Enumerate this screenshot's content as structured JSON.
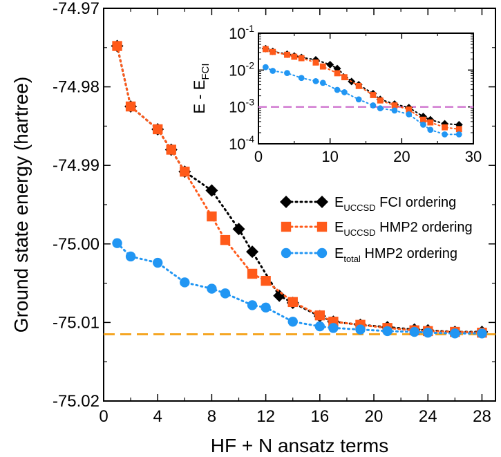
{
  "chart_data": [
    {
      "type": "scatter",
      "panel": "main",
      "xlabel": "HF + N ansatz terms",
      "ylabel": "Ground state energy (hartree)",
      "xlim": [
        0,
        29
      ],
      "ylim": [
        -75.02,
        -74.97
      ],
      "xticks": [
        0,
        4,
        8,
        12,
        16,
        20,
        24,
        28
      ],
      "xtick_labels": [
        "0",
        "4",
        "8",
        "12",
        "16",
        "20",
        "24",
        "28"
      ],
      "yticks": [
        -74.97,
        -74.98,
        -74.99,
        -75.0,
        -75.01,
        -75.02
      ],
      "ytick_labels": [
        "-74.97",
        "-74.98",
        "-74.99",
        "-75.00",
        "-75.01",
        "-75.02"
      ],
      "legend": {
        "position": "center-right",
        "entries": [
          {
            "label_main": "E",
            "label_sub": "UCCSD",
            "label_rest": " FCI ordering",
            "color": "#000000",
            "marker": "diamond"
          },
          {
            "label_main": "E",
            "label_sub": "UCCSD",
            "label_rest": " HMP2 ordering",
            "color": "#ff5a1a",
            "marker": "square"
          },
          {
            "label_main": "E",
            "label_sub": "total",
            "label_rest": " HMP2 ordering",
            "color": "#2196f3",
            "marker": "circle"
          }
        ]
      },
      "reference_line": {
        "y": -75.0115,
        "color": "#f5a623",
        "style": "dashed"
      },
      "series": [
        {
          "marker": "diamond",
          "color": "#000000",
          "x": [
            1,
            2,
            4,
            5,
            6,
            8,
            10,
            11,
            13,
            14,
            16,
            17,
            19,
            21,
            23,
            24,
            26,
            28
          ],
          "y": [
            -74.9748,
            -74.9825,
            -74.9854,
            -74.988,
            -74.9908,
            -74.9932,
            -74.9981,
            -75.001,
            -75.0066,
            -75.0075,
            -75.0092,
            -75.0099,
            -75.0103,
            -75.0106,
            -75.0109,
            -75.011,
            -75.0112,
            -75.0112
          ]
        },
        {
          "marker": "square",
          "color": "#ff5a1a",
          "x": [
            1,
            2,
            4,
            5,
            6,
            8,
            9,
            11,
            12,
            14,
            16,
            17,
            19,
            21,
            23,
            24,
            26,
            28
          ],
          "y": [
            -74.9748,
            -74.9825,
            -74.9854,
            -74.988,
            -74.9908,
            -74.9965,
            -74.9995,
            -75.0038,
            -75.0047,
            -75.0074,
            -75.0091,
            -75.0099,
            -75.0103,
            -75.0107,
            -75.011,
            -75.0111,
            -75.0112,
            -75.0113
          ]
        },
        {
          "marker": "circle",
          "color": "#2196f3",
          "x": [
            1,
            2,
            4,
            6,
            8,
            9,
            11,
            12,
            14,
            16,
            17,
            19,
            21,
            23,
            24,
            26,
            28
          ],
          "y": [
            -74.9999,
            -75.0016,
            -75.0024,
            -75.0049,
            -75.0057,
            -75.0063,
            -75.0078,
            -75.0081,
            -75.0099,
            -75.0105,
            -75.0107,
            -75.0109,
            -75.0111,
            -75.0112,
            -75.0113,
            -75.0114,
            -75.0114
          ]
        }
      ]
    },
    {
      "type": "scatter",
      "panel": "inset",
      "ylabel_main": "E - E",
      "ylabel_sub": "FCI",
      "yscale": "log",
      "xlim": [
        0,
        30
      ],
      "ylim": [
        0.0001,
        0.1
      ],
      "xticks": [
        0,
        10,
        20,
        30
      ],
      "xtick_labels": [
        "0",
        "10",
        "20",
        "30"
      ],
      "yticks": [
        {
          "value": 0.1,
          "base": "10",
          "exp": "-1"
        },
        {
          "value": 0.01,
          "base": "10",
          "exp": "-2"
        },
        {
          "value": 0.001,
          "base": "10",
          "exp": "-3"
        },
        {
          "value": 0.0001,
          "base": "10",
          "exp": "-4"
        }
      ],
      "reference_line": {
        "y": 0.001,
        "color": "#d17ad1",
        "style": "dashed"
      },
      "series": [
        {
          "marker": "diamond",
          "color": "#000000",
          "x": [
            1,
            2,
            4,
            5,
            6,
            8,
            10,
            11,
            13,
            14,
            16,
            17,
            19,
            21,
            23,
            24,
            26,
            28
          ],
          "y": [
            0.038,
            0.032,
            0.027,
            0.024,
            0.022,
            0.019,
            0.014,
            0.011,
            0.0049,
            0.004,
            0.0023,
            0.0016,
            0.0012,
            0.00096,
            0.00055,
            0.00045,
            0.00035,
            0.00033
          ]
        },
        {
          "marker": "square",
          "color": "#ff5a1a",
          "x": [
            1,
            2,
            4,
            5,
            6,
            8,
            9,
            11,
            12,
            14,
            16,
            17,
            19,
            21,
            23,
            24,
            26,
            28
          ],
          "y": [
            0.037,
            0.031,
            0.026,
            0.023,
            0.021,
            0.016,
            0.0125,
            0.0082,
            0.0064,
            0.0037,
            0.0021,
            0.0015,
            0.0011,
            0.00085,
            0.00045,
            0.00038,
            0.00028,
            0.00025
          ]
        },
        {
          "marker": "circle",
          "color": "#2196f3",
          "x": [
            1,
            2,
            4,
            6,
            8,
            9,
            11,
            12,
            14,
            16,
            17,
            19,
            21,
            23,
            24,
            26,
            28
          ],
          "y": [
            0.012,
            0.0095,
            0.0083,
            0.0061,
            0.005,
            0.0045,
            0.0029,
            0.0025,
            0.0016,
            0.0011,
            0.00092,
            0.0008,
            0.00063,
            0.00033,
            0.00024,
            0.00018,
            0.00018
          ]
        }
      ]
    }
  ]
}
